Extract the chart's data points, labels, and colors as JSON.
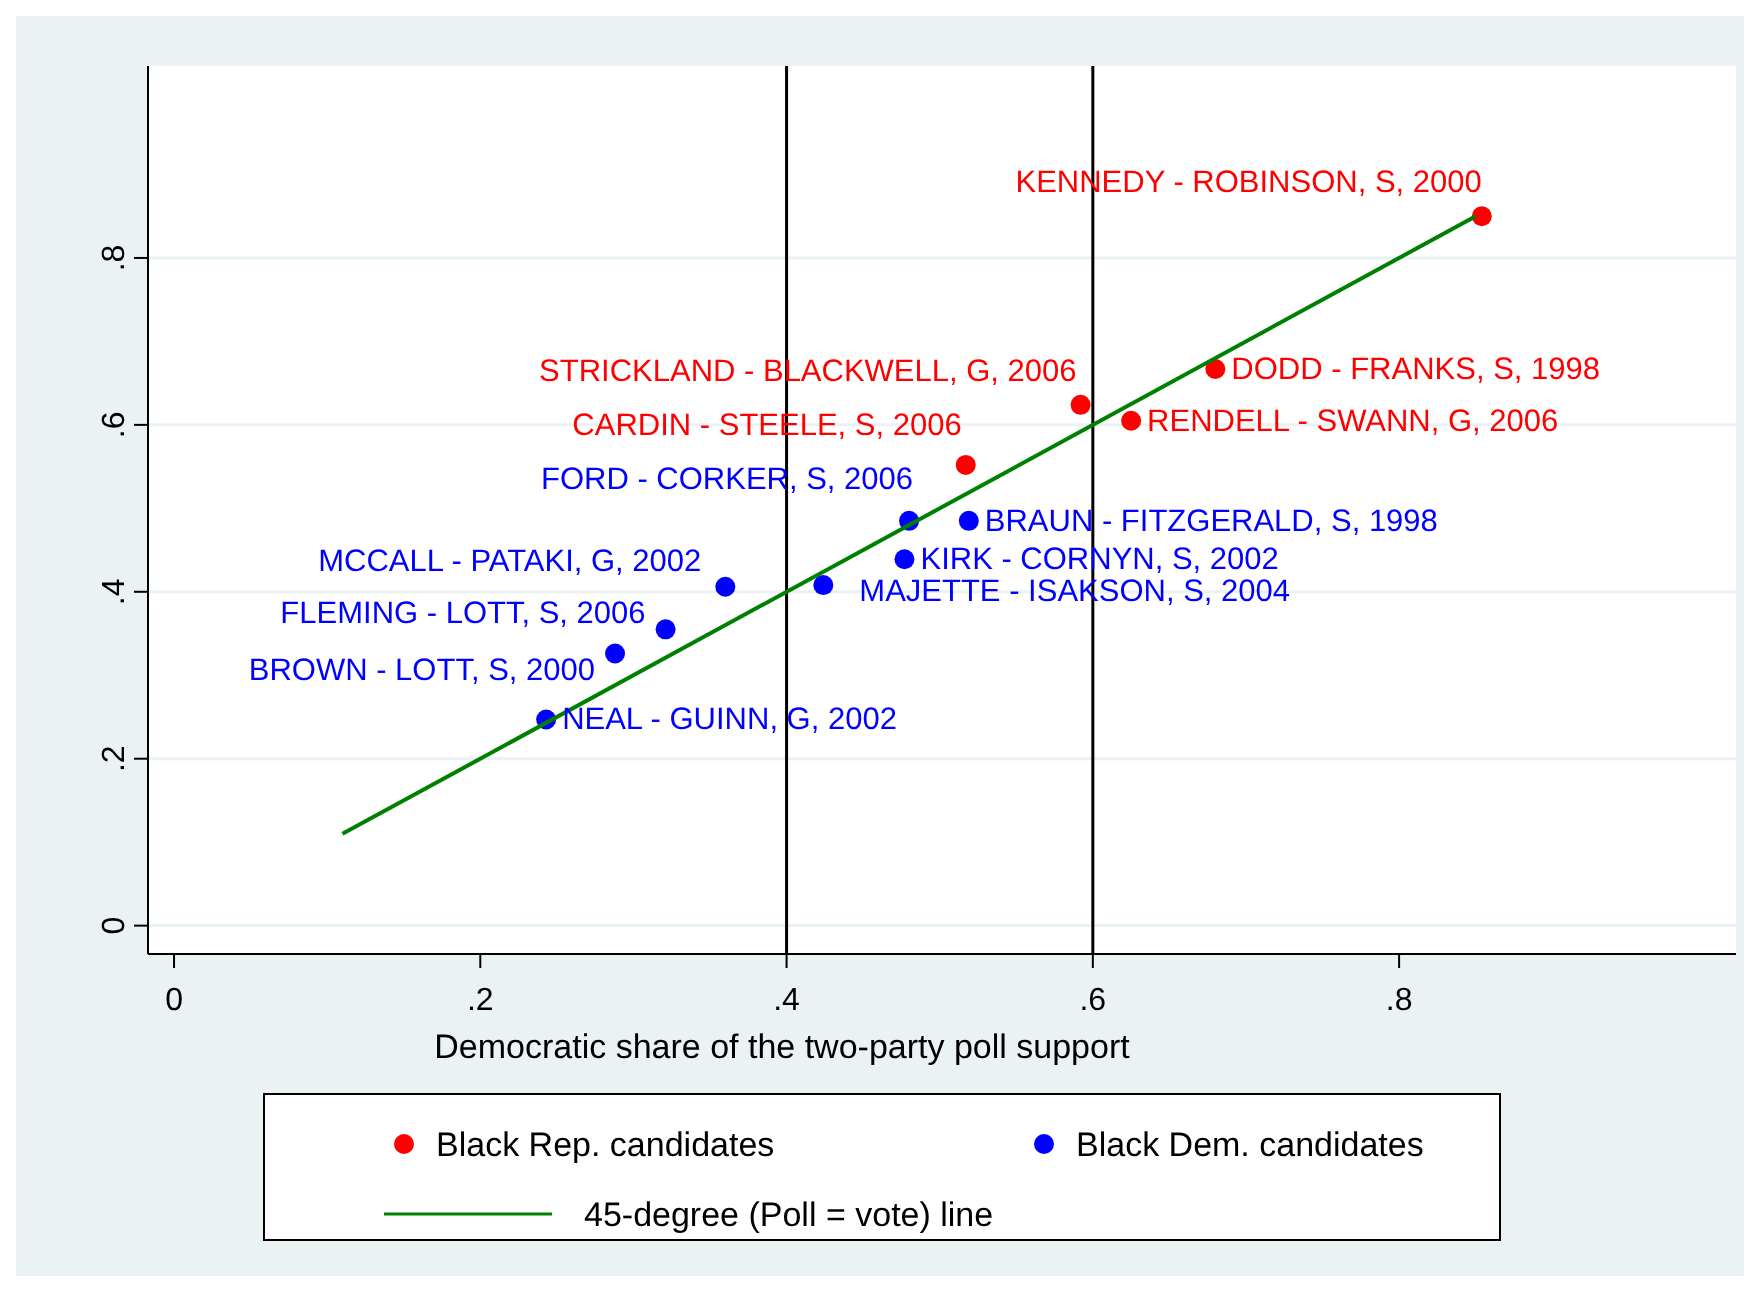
{
  "chart_data": {
    "type": "scatter",
    "xlabel": "Democratic share of the two-party poll support",
    "xlim": [
      -0.017,
      1.02
    ],
    "ylim": [
      -0.034,
      1.03
    ],
    "xticks": [
      {
        "value": 0,
        "label": "0"
      },
      {
        "value": 0.2,
        "label": ".2"
      },
      {
        "value": 0.4,
        "label": ".4"
      },
      {
        "value": 0.6,
        "label": ".6"
      },
      {
        "value": 0.8,
        "label": ".8"
      }
    ],
    "yticks": [
      {
        "value": 0,
        "label": "0"
      },
      {
        "value": 0.2,
        "label": ".2"
      },
      {
        "value": 0.4,
        "label": ".4"
      },
      {
        "value": 0.6,
        "label": ".6"
      },
      {
        "value": 0.8,
        "label": ".8"
      }
    ],
    "grid": "y",
    "legend": "bottom",
    "marker": "circle",
    "series": [
      {
        "name": "Black Rep. candidates",
        "color": "#ff0000",
        "x": [
          0.854,
          0.68,
          0.592,
          0.625,
          0.517
        ],
        "values": [
          0.85,
          0.667,
          0.624,
          0.605,
          0.552
        ]
      },
      {
        "name": "Black Dem. candidates",
        "color": "#0000ff",
        "x": [
          0.519,
          0.48,
          0.477,
          0.424,
          0.36,
          0.321,
          0.288,
          0.243
        ],
        "values": [
          0.485,
          0.485,
          0.439,
          0.408,
          0.406,
          0.355,
          0.326,
          0.247
        ]
      },
      {
        "name": "45-degree (Poll = vote) line",
        "type": "line",
        "color": "#008000",
        "marker": "none",
        "x": [
          0.11,
          0.85
        ],
        "values": [
          0.11,
          0.85
        ]
      }
    ],
    "ref_lines": [
      {
        "axis": "x",
        "value": 0.4,
        "color": "#000000"
      },
      {
        "axis": "x",
        "value": 0.6,
        "color": "#000000"
      }
    ],
    "annotations": [
      {
        "text": "KENNEDY - ROBINSON, S, 2000",
        "x": 0.854,
        "y": 0.85
      },
      {
        "text": "DODD - FRANKS, S, 1998",
        "x": 0.68,
        "y": 0.667
      },
      {
        "text": "STRICKLAND - BLACKWELL, G, 2006",
        "x": 0.592,
        "y": 0.624
      },
      {
        "text": "RENDELL - SWANN, G, 2006",
        "x": 0.625,
        "y": 0.605
      },
      {
        "text": "CARDIN - STEELE, S, 2006",
        "x": 0.517,
        "y": 0.552
      },
      {
        "text": "BRAUN - FITZGERALD, S, 1998",
        "x": 0.519,
        "y": 0.485
      },
      {
        "text": "FORD - CORKER, S, 2006",
        "x": 0.48,
        "y": 0.485
      },
      {
        "text": "KIRK - CORNYN, S, 2002",
        "x": 0.477,
        "y": 0.439
      },
      {
        "text": "MAJETTE - ISAKSON, S, 2004",
        "x": 0.424,
        "y": 0.408
      },
      {
        "text": "MCCALL - PATAKI, G, 2002",
        "x": 0.36,
        "y": 0.406
      },
      {
        "text": "FLEMING - LOTT, S, 2006",
        "x": 0.321,
        "y": 0.355
      },
      {
        "text": "BROWN - LOTT, S, 2000",
        "x": 0.288,
        "y": 0.326
      },
      {
        "text": "NEAL - GUINN, G, 2002",
        "x": 0.243,
        "y": 0.247
      }
    ]
  }
}
